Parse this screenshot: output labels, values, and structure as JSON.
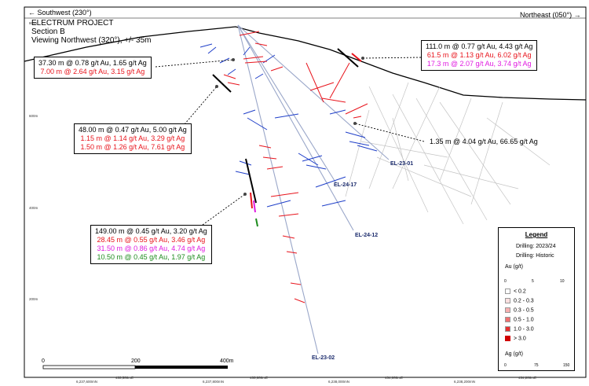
{
  "header": {
    "left_direction": "← Southwest (230°)",
    "right_direction": "Northeast (050°) →"
  },
  "title": {
    "line1": "ELECTRUM PROJECT",
    "line2": "Section B",
    "line3": "Viewing Northwest (320°), +/- 35m"
  },
  "callouts": {
    "c1": {
      "line1": "37.30 m @ 0.78 g/t Au, 1.65 g/t Ag",
      "line2": "7.00 m @ 2.64 g/t Au, 3.15 g/t Ag"
    },
    "c2": {
      "line1": "48.00 m @ 0.47 g/t Au, 5.00 g/t Ag",
      "line2": "1.15 m @ 1.14 g/t Au, 3.29 g/t Ag",
      "line3": "1.50 m @ 1.26 g/t Au, 7.61 g/t Ag"
    },
    "c3": {
      "line1": "111.0 m @ 0.77 g/t Au, 4.43 g/t Ag",
      "line2": "61.5 m @ 1.13 g/t Au, 6.02 g/t Ag",
      "line3": "17.3 m @ 2.07 g/t Au, 3.74 g/t Ag"
    },
    "c4": {
      "line1": "1.35 m @ 4.04 g/t Au, 66.65 g/t Ag"
    },
    "c5": {
      "line1": "149.00 m @ 0.45 g/t Au, 3.20 g/t Ag",
      "line2": "28.45 m @ 0.55 g/t Au, 3.46 g/t Ag",
      "line3": "31.50 m @ 0.86 g/t Au, 4.74 g/t Ag",
      "line4": "10.50 m @ 0.45 g/t Au, 1.97 g/t Ag"
    }
  },
  "drill_holes": {
    "h1": "EL-23-01",
    "h2": "EL-24-17",
    "h3": "EL-24-12",
    "h4": "EL-23-02"
  },
  "elevation_ticks": {
    "t800": "800m",
    "t600": "600m",
    "t400": "400m",
    "t200": "200m"
  },
  "easting_ticks": {
    "e1": "6,237,600mN",
    "e2": "433,500mE",
    "e3": "6,237,800mN",
    "e4": "433,600mE",
    "e5": "6,238,000mN",
    "e6": "434,000mE",
    "e7": "6,238,200mN",
    "e8": "434,200mE"
  },
  "scale_bar": {
    "zero": "0",
    "mid": "200",
    "end": "400m"
  },
  "legend": {
    "title": "Legend",
    "drill_new": "Drilling: 2023/24",
    "drill_hist": "Drilling: Historic",
    "au_title": "Au (g/t)",
    "au_items": [
      "< 0.2",
      "0.2 - 0.3",
      "0.3 - 0.5",
      "0.5 - 1.0",
      "1.0 - 3.0",
      "> 3.0"
    ],
    "ag_title": "Ag (g/t)",
    "au_ticks": [
      "0",
      "5",
      "10"
    ],
    "ag_ticks": [
      "0",
      "75",
      "150"
    ]
  },
  "colors": {
    "au_bar": "#e8141c",
    "ag_bar": "#1f3fc9",
    "magenta": "#e01ae0",
    "green": "#1e8c1e",
    "hole_trace": "#9aa7c9",
    "historic": "#bdbdbd"
  }
}
